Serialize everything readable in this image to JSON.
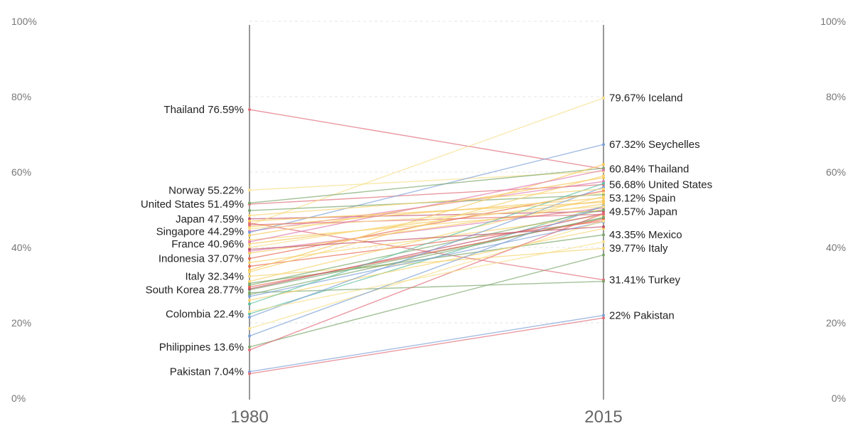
{
  "chart_data": {
    "type": "line",
    "subtype": "slope",
    "x": [
      "1980",
      "2015"
    ],
    "ylim": [
      0,
      100
    ],
    "y_ticks": [
      "0%",
      "20%",
      "40%",
      "60%",
      "80%",
      "100%"
    ],
    "grid": true,
    "labeled_left": [
      {
        "name": "Thailand",
        "value": 76.59,
        "label": "Thailand 76.59%"
      },
      {
        "name": "Norway",
        "value": 55.22,
        "label": "Norway 55.22%"
      },
      {
        "name": "United States",
        "value": 51.49,
        "label": "United States 51.49%"
      },
      {
        "name": "Japan",
        "value": 47.59,
        "label": "Japan 47.59%"
      },
      {
        "name": "Singapore",
        "value": 44.29,
        "label": "Singapore 44.29%"
      },
      {
        "name": "France",
        "value": 40.96,
        "label": "France 40.96%"
      },
      {
        "name": "Indonesia",
        "value": 37.07,
        "label": "Indonesia 37.07%"
      },
      {
        "name": "Italy",
        "value": 32.34,
        "label": "Italy 32.34%"
      },
      {
        "name": "South Korea",
        "value": 28.77,
        "label": "South Korea 28.77%"
      },
      {
        "name": "Colombia",
        "value": 22.4,
        "label": "Colombia 22.4%"
      },
      {
        "name": "Philippines",
        "value": 13.6,
        "label": "Philippines 13.6%"
      },
      {
        "name": "Pakistan",
        "value": 7.04,
        "label": "Pakistan 7.04%"
      }
    ],
    "labeled_right": [
      {
        "name": "Iceland",
        "value": 79.67,
        "label": "79.67% Iceland"
      },
      {
        "name": "Seychelles",
        "value": 67.32,
        "label": "67.32% Seychelles"
      },
      {
        "name": "Thailand",
        "value": 60.84,
        "label": "60.84% Thailand"
      },
      {
        "name": "United States",
        "value": 56.68,
        "label": "56.68% United States"
      },
      {
        "name": "Spain",
        "value": 53.12,
        "label": "53.12% Spain"
      },
      {
        "name": "Japan",
        "value": 49.57,
        "label": "49.57% Japan"
      },
      {
        "name": "Mexico",
        "value": 43.35,
        "label": "43.35% Mexico"
      },
      {
        "name": "Italy",
        "value": 39.77,
        "label": "39.77% Italy"
      },
      {
        "name": "Turkey",
        "value": 31.41,
        "label": "31.41% Turkey"
      },
      {
        "name": "Pakistan",
        "value": 22,
        "label": "22% Pakistan"
      }
    ],
    "series": [
      {
        "values": [
          76.59,
          60.84
        ],
        "color": "#e06c78"
      },
      {
        "values": [
          55.22,
          60.2
        ],
        "color": "#f7e08a"
      },
      {
        "values": [
          51.49,
          56.68
        ],
        "color": "#e06c78"
      },
      {
        "values": [
          47.59,
          49.57
        ],
        "color": "#c0506a"
      },
      {
        "values": [
          44.29,
          57.5
        ],
        "color": "#e07bb0"
      },
      {
        "values": [
          40.96,
          52.4
        ],
        "color": "#f6c75a"
      },
      {
        "values": [
          37.07,
          55.0
        ],
        "color": "#e8674e"
      },
      {
        "values": [
          32.34,
          39.77
        ],
        "color": "#f7d36b"
      },
      {
        "values": [
          28.77,
          47.8
        ],
        "color": "#7aa66b"
      },
      {
        "values": [
          22.4,
          51.0
        ],
        "color": "#5fc0a0"
      },
      {
        "values": [
          13.6,
          38.0
        ],
        "color": "#7aa66b"
      },
      {
        "values": [
          7.04,
          22.0
        ],
        "color": "#7a9fd6"
      },
      {
        "values": [
          6.5,
          21.3
        ],
        "color": "#e06c78"
      },
      {
        "values": [
          46.0,
          79.67
        ],
        "color": "#f7e08a"
      },
      {
        "values": [
          44.0,
          67.32
        ],
        "color": "#7a9fd6"
      },
      {
        "values": [
          46.5,
          31.41
        ],
        "color": "#e06c78"
      },
      {
        "values": [
          28.0,
          31.0
        ],
        "color": "#7aa66b"
      },
      {
        "values": [
          30.5,
          43.35
        ],
        "color": "#7aa66b"
      },
      {
        "values": [
          49.8,
          54.0
        ],
        "color": "#7aa66b"
      },
      {
        "values": [
          51.8,
          61.0
        ],
        "color": "#7aa66b"
      },
      {
        "values": [
          45.5,
          53.12
        ],
        "color": "#f6c75a"
      },
      {
        "values": [
          43.2,
          58.5
        ],
        "color": "#f6c75a"
      },
      {
        "values": [
          42.0,
          50.0
        ],
        "color": "#f7d36b"
      },
      {
        "values": [
          39.0,
          50.5
        ],
        "color": "#e07bb0"
      },
      {
        "values": [
          38.5,
          51.5
        ],
        "color": "#f6c75a"
      },
      {
        "values": [
          36.0,
          48.5
        ],
        "color": "#f7d36b"
      },
      {
        "values": [
          35.0,
          47.0
        ],
        "color": "#e8674e"
      },
      {
        "values": [
          34.0,
          62.0
        ],
        "color": "#f6c75a"
      },
      {
        "values": [
          31.0,
          53.5
        ],
        "color": "#f7d36b"
      },
      {
        "values": [
          30.0,
          50.0
        ],
        "color": "#7aa66b"
      },
      {
        "values": [
          29.5,
          47.5
        ],
        "color": "#e8674e"
      },
      {
        "values": [
          29.0,
          49.0
        ],
        "color": "#c0506a"
      },
      {
        "values": [
          27.5,
          48.0
        ],
        "color": "#7aa66b"
      },
      {
        "values": [
          27.0,
          46.8
        ],
        "color": "#7a9fd6"
      },
      {
        "values": [
          26.0,
          45.0
        ],
        "color": "#f7d36b"
      },
      {
        "values": [
          25.0,
          57.0
        ],
        "color": "#5fc0a0"
      },
      {
        "values": [
          21.5,
          56.0
        ],
        "color": "#7a9fd6"
      },
      {
        "values": [
          18.5,
          47.0
        ],
        "color": "#f7e08a"
      },
      {
        "values": [
          16.5,
          51.0
        ],
        "color": "#7a9fd6"
      },
      {
        "values": [
          12.8,
          49.0
        ],
        "color": "#e06c78"
      },
      {
        "values": [
          48.5,
          55.5
        ],
        "color": "#f7d36b"
      },
      {
        "values": [
          47.0,
          52.0
        ],
        "color": "#f6c75a"
      },
      {
        "values": [
          46.0,
          48.8
        ],
        "color": "#e06c78"
      },
      {
        "values": [
          45.0,
          50.8
        ],
        "color": "#f7e08a"
      },
      {
        "values": [
          41.5,
          60.5
        ],
        "color": "#e07bb0"
      },
      {
        "values": [
          40.0,
          54.5
        ],
        "color": "#f7e08a"
      },
      {
        "values": [
          39.5,
          45.5
        ],
        "color": "#c0506a"
      },
      {
        "values": [
          33.5,
          59.0
        ],
        "color": "#f7d36b"
      },
      {
        "values": [
          23.0,
          41.5
        ],
        "color": "#f7e08a"
      }
    ]
  }
}
